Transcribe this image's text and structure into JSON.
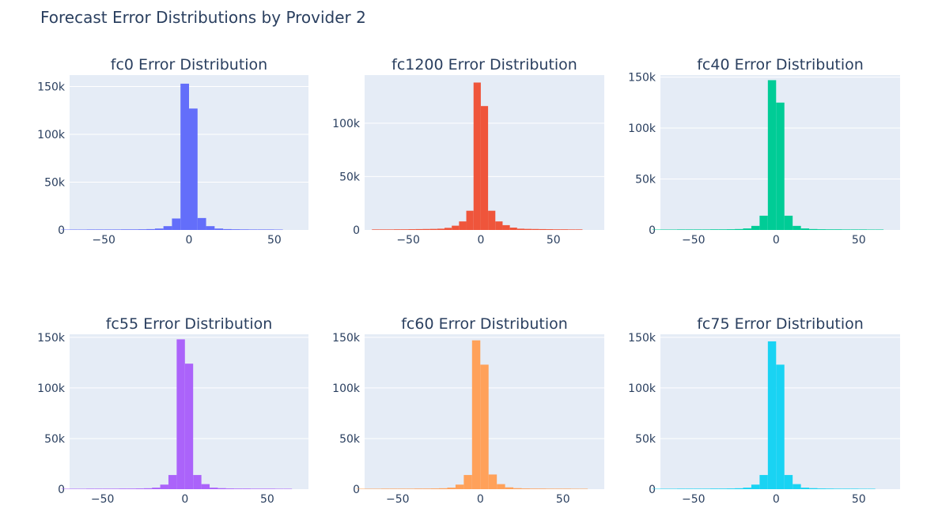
{
  "title": "Forecast Error Distributions by Provider 2",
  "colors": {
    "plot_bg": "#e5ecf6",
    "grid": "#ffffff",
    "text": "#2a3f5f"
  },
  "chart_data": [
    {
      "type": "bar",
      "title": "fc0 Error Distribution",
      "color": "#636efa",
      "xlim": [
        -70,
        70
      ],
      "ylim": [
        0,
        162000
      ],
      "xticks": [
        -50,
        0,
        50
      ],
      "xtick_labels": [
        "−50",
        "0",
        "50"
      ],
      "yticks": [
        0,
        50000,
        100000,
        150000
      ],
      "ytick_labels": [
        "0",
        "50k",
        "100k",
        "150k"
      ],
      "bin_width": 5,
      "bins": [
        [
          -72.5,
          400
        ],
        [
          -67.5,
          400
        ],
        [
          -62.5,
          400
        ],
        [
          -57.5,
          500
        ],
        [
          -52.5,
          500
        ],
        [
          -47.5,
          500
        ],
        [
          -42.5,
          500
        ],
        [
          -37.5,
          600
        ],
        [
          -32.5,
          600
        ],
        [
          -27.5,
          700
        ],
        [
          -22.5,
          900
        ],
        [
          -17.5,
          1500
        ],
        [
          -12.5,
          4000
        ],
        [
          -7.5,
          12000
        ],
        [
          -2.5,
          153000
        ],
        [
          2.5,
          127000
        ],
        [
          7.5,
          12500
        ],
        [
          12.5,
          4000
        ],
        [
          17.5,
          1500
        ],
        [
          22.5,
          900
        ],
        [
          27.5,
          700
        ],
        [
          32.5,
          600
        ],
        [
          37.5,
          500
        ],
        [
          42.5,
          500
        ],
        [
          47.5,
          500
        ],
        [
          52.5,
          400
        ]
      ]
    },
    {
      "type": "bar",
      "title": "fc1200 Error Distribution",
      "color": "#ef553b",
      "xlim": [
        -80,
        85
      ],
      "ylim": [
        0,
        145000
      ],
      "xticks": [
        -50,
        0,
        50
      ],
      "xtick_labels": [
        "−50",
        "0",
        "50"
      ],
      "yticks": [
        0,
        50000,
        100000
      ],
      "ytick_labels": [
        "0",
        "50k",
        "100k"
      ],
      "bin_width": 5,
      "bins": [
        [
          -72.5,
          500
        ],
        [
          -67.5,
          500
        ],
        [
          -62.5,
          500
        ],
        [
          -57.5,
          600
        ],
        [
          -52.5,
          600
        ],
        [
          -47.5,
          700
        ],
        [
          -42.5,
          800
        ],
        [
          -37.5,
          900
        ],
        [
          -32.5,
          1000
        ],
        [
          -27.5,
          1200
        ],
        [
          -22.5,
          2000
        ],
        [
          -17.5,
          4000
        ],
        [
          -12.5,
          8000
        ],
        [
          -7.5,
          18000
        ],
        [
          -2.5,
          138000
        ],
        [
          2.5,
          116000
        ],
        [
          7.5,
          18000
        ],
        [
          12.5,
          8000
        ],
        [
          17.5,
          4500
        ],
        [
          22.5,
          2200
        ],
        [
          27.5,
          1200
        ],
        [
          32.5,
          1000
        ],
        [
          37.5,
          900
        ],
        [
          42.5,
          800
        ],
        [
          47.5,
          700
        ],
        [
          52.5,
          600
        ],
        [
          57.5,
          600
        ],
        [
          62.5,
          500
        ],
        [
          67.5,
          500
        ]
      ]
    },
    {
      "type": "bar",
      "title": "fc40 Error Distribution",
      "color": "#00cc96",
      "xlim": [
        -70,
        75
      ],
      "ylim": [
        0,
        152000
      ],
      "xticks": [
        -50,
        0,
        50
      ],
      "xtick_labels": [
        "−50",
        "0",
        "50"
      ],
      "yticks": [
        0,
        50000,
        100000,
        150000
      ],
      "ytick_labels": [
        "0",
        "50k",
        "100k",
        "150k"
      ],
      "bin_width": 5,
      "bins": [
        [
          -72.5,
          400
        ],
        [
          -67.5,
          400
        ],
        [
          -62.5,
          400
        ],
        [
          -57.5,
          500
        ],
        [
          -52.5,
          500
        ],
        [
          -47.5,
          500
        ],
        [
          -42.5,
          500
        ],
        [
          -37.5,
          600
        ],
        [
          -32.5,
          600
        ],
        [
          -27.5,
          700
        ],
        [
          -22.5,
          900
        ],
        [
          -17.5,
          1500
        ],
        [
          -12.5,
          4000
        ],
        [
          -7.5,
          14000
        ],
        [
          -2.5,
          147000
        ],
        [
          2.5,
          125000
        ],
        [
          7.5,
          14000
        ],
        [
          12.5,
          4000
        ],
        [
          17.5,
          1500
        ],
        [
          22.5,
          900
        ],
        [
          27.5,
          700
        ],
        [
          32.5,
          600
        ],
        [
          37.5,
          600
        ],
        [
          42.5,
          500
        ],
        [
          47.5,
          500
        ],
        [
          52.5,
          500
        ],
        [
          57.5,
          400
        ],
        [
          62.5,
          400
        ]
      ]
    },
    {
      "type": "bar",
      "title": "fc55 Error Distribution",
      "color": "#ab63fa",
      "xlim": [
        -70,
        75
      ],
      "ylim": [
        0,
        153000
      ],
      "xticks": [
        -50,
        0,
        50
      ],
      "xtick_labels": [
        "−50",
        "0",
        "50"
      ],
      "yticks": [
        0,
        50000,
        100000,
        150000
      ],
      "ytick_labels": [
        "0",
        "50k",
        "100k",
        "150k"
      ],
      "bin_width": 5,
      "bins": [
        [
          -72.5,
          400
        ],
        [
          -67.5,
          400
        ],
        [
          -62.5,
          400
        ],
        [
          -57.5,
          500
        ],
        [
          -52.5,
          500
        ],
        [
          -47.5,
          500
        ],
        [
          -42.5,
          500
        ],
        [
          -37.5,
          600
        ],
        [
          -32.5,
          600
        ],
        [
          -27.5,
          700
        ],
        [
          -22.5,
          900
        ],
        [
          -17.5,
          1500
        ],
        [
          -12.5,
          4500
        ],
        [
          -7.5,
          14000
        ],
        [
          -2.5,
          148000
        ],
        [
          2.5,
          124000
        ],
        [
          7.5,
          14000
        ],
        [
          12.5,
          5000
        ],
        [
          17.5,
          1500
        ],
        [
          22.5,
          1000
        ],
        [
          27.5,
          700
        ],
        [
          32.5,
          600
        ],
        [
          37.5,
          600
        ],
        [
          42.5,
          500
        ],
        [
          47.5,
          500
        ],
        [
          52.5,
          500
        ],
        [
          57.5,
          400
        ],
        [
          62.5,
          400
        ]
      ]
    },
    {
      "type": "bar",
      "title": "fc60 Error Distribution",
      "color": "#ffa15a",
      "xlim": [
        -70,
        75
      ],
      "ylim": [
        0,
        153000
      ],
      "xticks": [
        -50,
        0,
        50
      ],
      "xtick_labels": [
        "−50",
        "0",
        "50"
      ],
      "yticks": [
        0,
        50000,
        100000,
        150000
      ],
      "ytick_labels": [
        "0",
        "50k",
        "100k",
        "150k"
      ],
      "bin_width": 5,
      "bins": [
        [
          -72.5,
          400
        ],
        [
          -67.5,
          400
        ],
        [
          -62.5,
          400
        ],
        [
          -57.5,
          500
        ],
        [
          -52.5,
          500
        ],
        [
          -47.5,
          500
        ],
        [
          -42.5,
          500
        ],
        [
          -37.5,
          600
        ],
        [
          -32.5,
          600
        ],
        [
          -27.5,
          700
        ],
        [
          -22.5,
          900
        ],
        [
          -17.5,
          1500
        ],
        [
          -12.5,
          4500
        ],
        [
          -7.5,
          14000
        ],
        [
          -2.5,
          147000
        ],
        [
          2.5,
          123000
        ],
        [
          7.5,
          14500
        ],
        [
          12.5,
          5000
        ],
        [
          17.5,
          1800
        ],
        [
          22.5,
          1000
        ],
        [
          27.5,
          700
        ],
        [
          32.5,
          600
        ],
        [
          37.5,
          600
        ],
        [
          42.5,
          500
        ],
        [
          47.5,
          500
        ],
        [
          52.5,
          500
        ],
        [
          57.5,
          400
        ],
        [
          62.5,
          400
        ]
      ]
    },
    {
      "type": "bar",
      "title": "fc75 Error Distribution",
      "color": "#19d3f3",
      "xlim": [
        -70,
        75
      ],
      "ylim": [
        0,
        153000
      ],
      "xticks": [
        -50,
        0,
        50
      ],
      "xtick_labels": [
        "−50",
        "0",
        "50"
      ],
      "yticks": [
        0,
        50000,
        100000,
        150000
      ],
      "ytick_labels": [
        "0",
        "50k",
        "100k",
        "150k"
      ],
      "bin_width": 5,
      "bins": [
        [
          -72.5,
          400
        ],
        [
          -67.5,
          400
        ],
        [
          -62.5,
          400
        ],
        [
          -57.5,
          500
        ],
        [
          -52.5,
          500
        ],
        [
          -47.5,
          500
        ],
        [
          -42.5,
          500
        ],
        [
          -37.5,
          600
        ],
        [
          -32.5,
          600
        ],
        [
          -27.5,
          700
        ],
        [
          -22.5,
          900
        ],
        [
          -17.5,
          1500
        ],
        [
          -12.5,
          4500
        ],
        [
          -7.5,
          14000
        ],
        [
          -2.5,
          146000
        ],
        [
          2.5,
          123000
        ],
        [
          7.5,
          14000
        ],
        [
          12.5,
          5000
        ],
        [
          17.5,
          1500
        ],
        [
          22.5,
          1000
        ],
        [
          27.5,
          700
        ],
        [
          32.5,
          600
        ],
        [
          37.5,
          500
        ],
        [
          42.5,
          500
        ],
        [
          47.5,
          500
        ],
        [
          52.5,
          400
        ],
        [
          57.5,
          400
        ]
      ]
    }
  ]
}
